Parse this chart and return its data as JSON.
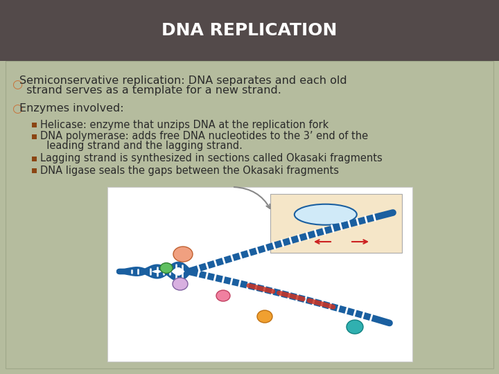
{
  "title": "DNA REPLICATION",
  "title_bg": "#534a4a",
  "title_color": "#ffffff",
  "slide_bg": "#b5bc9e",
  "content_bg": "#b5bc9e",
  "bullet_circle_color": "#c8733a",
  "bullet1_line1": "Semiconservative replication: DNA separates and each old",
  "bullet1_line2": "  strand serves as a template for a new strand.",
  "bullet2_text": "Enzymes involved:",
  "sub_bullets": [
    "Helicase: enzyme that unzips DNA at the replication fork",
    "DNA polymerase: adds free DNA nucleotides to the 3’ end of the",
    "  leading strand and the lagging strand.",
    "Lagging strand is synthesized in sections called Okasaki fragments",
    "DNA ligase seals the gaps between the Okasaki fragments"
  ],
  "sub_bullet_color": "#8b4513",
  "text_color": "#2a2a2a",
  "title_font_size": 18,
  "bullet_font_size": 11.5,
  "sub_font_size": 10.5,
  "image_bg": "#ffffff",
  "image_inset_bg": "#f5e6c8",
  "dna_blue": "#1a5fa0",
  "dna_teal": "#1a8a8a",
  "strand_colors": [
    "#1a5fa0",
    "#1a5fa0"
  ],
  "rung_color": "#4a9fd4"
}
